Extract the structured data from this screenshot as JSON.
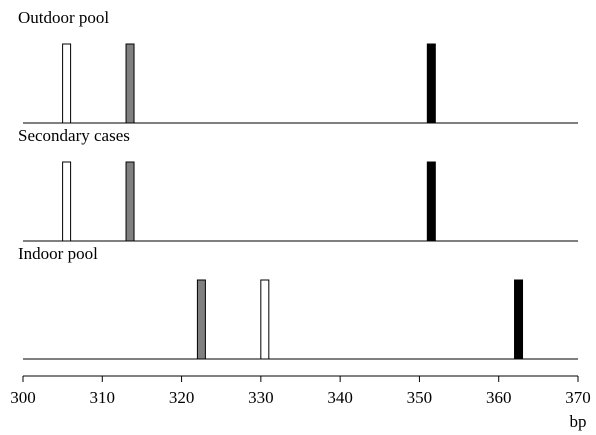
{
  "chart_data": {
    "type": "bar",
    "xlabel": "bp",
    "xlim": [
      300,
      370
    ],
    "xticks": [
      300,
      310,
      320,
      330,
      340,
      350,
      360,
      370
    ],
    "grid": false,
    "panels": [
      {
        "title": "Outdoor pool",
        "bands": [
          {
            "x": 305.5,
            "fill": "#ffffff"
          },
          {
            "x": 313.5,
            "fill": "#808080"
          },
          {
            "x": 351.5,
            "fill": "#000000"
          }
        ]
      },
      {
        "title": "Secondary cases",
        "bands": [
          {
            "x": 305.5,
            "fill": "#ffffff"
          },
          {
            "x": 313.5,
            "fill": "#808080"
          },
          {
            "x": 351.5,
            "fill": "#000000"
          }
        ]
      },
      {
        "title": "Indoor pool",
        "bands": [
          {
            "x": 322.5,
            "fill": "#808080"
          },
          {
            "x": 330.5,
            "fill": "#ffffff"
          },
          {
            "x": 362.5,
            "fill": "#000000"
          }
        ]
      }
    ]
  }
}
